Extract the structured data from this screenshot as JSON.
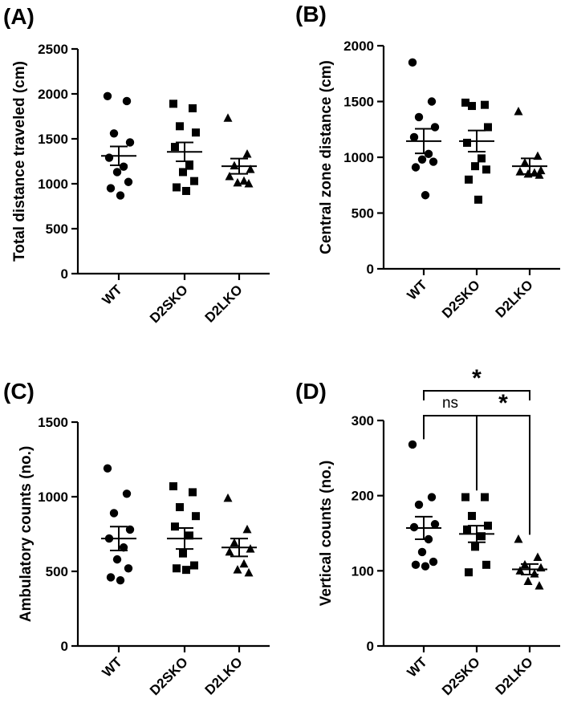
{
  "chart_data": [
    {
      "type": "scatter",
      "panel": "(A)",
      "ylabel": "Total distance traveled (cm)",
      "categories": [
        "WT",
        "D2SKO",
        "D2LKO"
      ],
      "yticks": [
        0,
        500,
        1000,
        1500,
        2000,
        2500
      ],
      "ylim": [
        0,
        2500
      ],
      "series": [
        {
          "marker": "circle",
          "points": [
            1975,
            1920,
            1560,
            1460,
            1290,
            1190,
            1130,
            1020,
            950,
            870
          ],
          "mean": 1310,
          "sem": 105
        },
        {
          "marker": "square",
          "points": [
            1890,
            1840,
            1640,
            1570,
            1410,
            1200,
            1130,
            1030,
            960,
            920
          ],
          "mean": 1355,
          "sem": 105
        },
        {
          "marker": "triangle",
          "points": [
            1730,
            1330,
            1200,
            1160,
            1080,
            1030,
            1010,
            1000
          ],
          "mean": 1195,
          "sem": 85
        }
      ],
      "significance": []
    },
    {
      "type": "scatter",
      "panel": "(B)",
      "ylabel": "Central zone distance (cm)",
      "categories": [
        "WT",
        "D2SKO",
        "D2LKO"
      ],
      "yticks": [
        0,
        500,
        1000,
        1500,
        2000
      ],
      "ylim": [
        0,
        2000
      ],
      "series": [
        {
          "marker": "circle",
          "points": [
            1850,
            1500,
            1360,
            1270,
            1180,
            1030,
            980,
            960,
            910,
            660
          ],
          "mean": 1145,
          "sem": 110
        },
        {
          "marker": "square",
          "points": [
            1490,
            1470,
            1460,
            1270,
            1130,
            990,
            920,
            890,
            800,
            620
          ],
          "mean": 1145,
          "sem": 95
        },
        {
          "marker": "triangle",
          "points": [
            1410,
            1010,
            950,
            880,
            870,
            860,
            850,
            840
          ],
          "mean": 920,
          "sem": 70
        }
      ],
      "significance": []
    },
    {
      "type": "scatter",
      "panel": "(C)",
      "ylabel": "Ambulatory counts (no.)",
      "categories": [
        "WT",
        "D2SKO",
        "D2LKO"
      ],
      "yticks": [
        0,
        500,
        1000,
        1500
      ],
      "ylim": [
        0,
        1500
      ],
      "series": [
        {
          "marker": "circle",
          "points": [
            1190,
            1020,
            890,
            780,
            720,
            660,
            580,
            520,
            460,
            440
          ],
          "mean": 720,
          "sem": 80
        },
        {
          "marker": "square",
          "points": [
            1070,
            1030,
            930,
            870,
            800,
            740,
            620,
            540,
            520,
            510
          ],
          "mean": 720,
          "sem": 70
        },
        {
          "marker": "triangle",
          "points": [
            990,
            780,
            690,
            650,
            630,
            550,
            510,
            490
          ],
          "mean": 660,
          "sem": 60
        }
      ],
      "significance": []
    },
    {
      "type": "scatter",
      "panel": "(D)",
      "ylabel": "Vertical counts (no.)",
      "categories": [
        "WT",
        "D2SKO",
        "D2LKO"
      ],
      "yticks": [
        0,
        100,
        200,
        300
      ],
      "ylim": [
        0,
        300
      ],
      "series": [
        {
          "marker": "circle",
          "points": [
            268,
            198,
            188,
            162,
            158,
            142,
            125,
            112,
            108,
            106
          ],
          "mean": 157,
          "sem": 15
        },
        {
          "marker": "square",
          "points": [
            198,
            198,
            173,
            160,
            155,
            146,
            132,
            108,
            98
          ],
          "mean": 149,
          "sem": 11
        },
        {
          "marker": "triangle",
          "points": [
            142,
            118,
            108,
            104,
            100,
            96,
            86,
            80
          ],
          "mean": 102,
          "sem": 7
        }
      ],
      "significance": [
        {
          "from": 0,
          "to": 1,
          "label": "ns",
          "level": 1
        },
        {
          "from": 1,
          "to": 2,
          "label": "*",
          "level": 1
        },
        {
          "from": 0,
          "to": 2,
          "label": "*",
          "level": 2
        }
      ]
    }
  ]
}
